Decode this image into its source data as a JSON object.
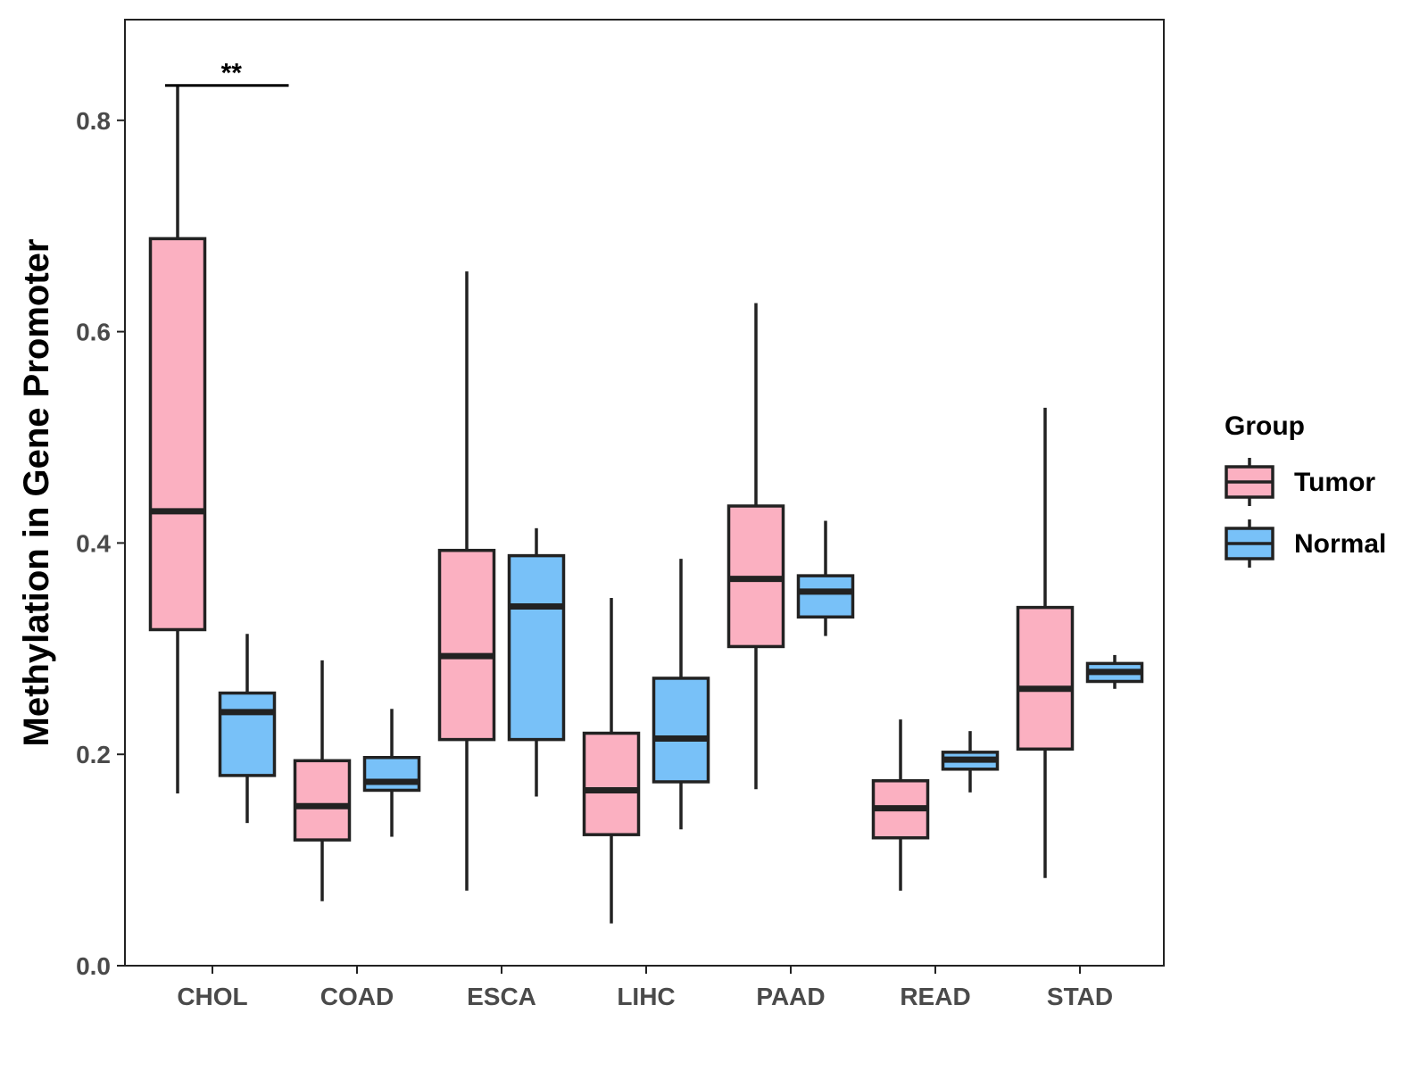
{
  "chart_data": {
    "type": "boxplot",
    "title": "",
    "xlabel": "",
    "ylabel": "Methylation in Gene Promoter",
    "ylim": [
      0,
      0.89
    ],
    "yticks": [
      0.0,
      0.2,
      0.4,
      0.6,
      0.8
    ],
    "ytick_labels": [
      "0.0",
      "0.2",
      "0.4",
      "0.6",
      "0.8"
    ],
    "categories": [
      "CHOL",
      "COAD",
      "ESCA",
      "LIHC",
      "PAAD",
      "READ",
      "STAD"
    ],
    "legend": {
      "title": "Group",
      "position": "right",
      "entries": [
        {
          "name": "Tumor",
          "color": "#FBB0C1"
        },
        {
          "name": "Normal",
          "color": "#78C1F8"
        }
      ]
    },
    "series": [
      {
        "name": "Tumor",
        "color": "#FBB0C1",
        "boxes": [
          {
            "min": 0.163,
            "q1": 0.318,
            "median": 0.43,
            "q3": 0.688,
            "max": 0.833
          },
          {
            "min": 0.061,
            "q1": 0.119,
            "median": 0.151,
            "q3": 0.194,
            "max": 0.289
          },
          {
            "min": 0.071,
            "q1": 0.214,
            "median": 0.293,
            "q3": 0.393,
            "max": 0.657
          },
          {
            "min": 0.04,
            "q1": 0.124,
            "median": 0.166,
            "q3": 0.22,
            "max": 0.348
          },
          {
            "min": 0.167,
            "q1": 0.302,
            "median": 0.366,
            "q3": 0.435,
            "max": 0.627
          },
          {
            "min": 0.071,
            "q1": 0.121,
            "median": 0.149,
            "q3": 0.175,
            "max": 0.233
          },
          {
            "min": 0.083,
            "q1": 0.205,
            "median": 0.262,
            "q3": 0.339,
            "max": 0.528
          }
        ]
      },
      {
        "name": "Normal",
        "color": "#78C1F8",
        "boxes": [
          {
            "min": 0.135,
            "q1": 0.18,
            "median": 0.24,
            "q3": 0.258,
            "max": 0.314
          },
          {
            "min": 0.122,
            "q1": 0.166,
            "median": 0.174,
            "q3": 0.197,
            "max": 0.243
          },
          {
            "min": 0.16,
            "q1": 0.214,
            "median": 0.34,
            "q3": 0.388,
            "max": 0.414
          },
          {
            "min": 0.129,
            "q1": 0.174,
            "median": 0.215,
            "q3": 0.272,
            "max": 0.385
          },
          {
            "min": 0.312,
            "q1": 0.33,
            "median": 0.354,
            "q3": 0.369,
            "max": 0.421
          },
          {
            "min": 0.164,
            "q1": 0.186,
            "median": 0.195,
            "q3": 0.202,
            "max": 0.222
          },
          {
            "min": 0.262,
            "q1": 0.269,
            "median": 0.278,
            "q3": 0.286,
            "max": 0.294
          }
        ]
      }
    ],
    "annotations": [
      {
        "text": "**",
        "category": "CHOL",
        "y": 0.833
      }
    ]
  }
}
